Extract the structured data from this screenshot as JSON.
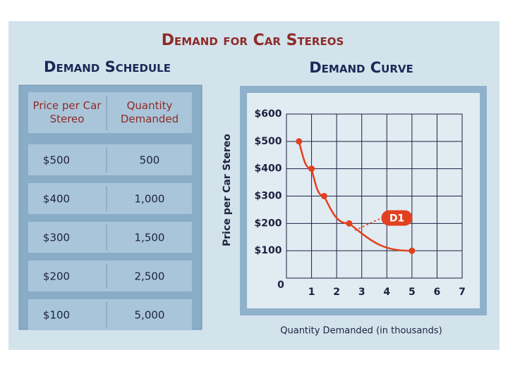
{
  "title": "Demand for Car Stereos",
  "schedule": {
    "title": "Demand Schedule",
    "header": [
      "Price per Car Stereo",
      "Quantity Demanded"
    ],
    "rows": [
      [
        "$500",
        "500"
      ],
      [
        "$400",
        "1,000"
      ],
      [
        "$300",
        "1,500"
      ],
      [
        "$200",
        "2,500"
      ],
      [
        "$100",
        "5,000"
      ]
    ]
  },
  "chart_data": {
    "type": "line",
    "title": "Demand Curve",
    "x_label": "Quantity Demanded (in thousands)",
    "y_label": "Price per Car Stereo",
    "x": [
      0.5,
      1,
      1.5,
      2.5,
      5
    ],
    "series": [
      {
        "name": "D1",
        "color": "#e2401e",
        "values": [
          500,
          400,
          300,
          200,
          100
        ]
      }
    ],
    "xlim": [
      0,
      7
    ],
    "xticks": [
      1,
      2,
      3,
      4,
      5,
      6,
      7
    ],
    "ylim": [
      0,
      600
    ],
    "yticks": [
      0,
      {
        "value": 100,
        "label": "$100"
      },
      {
        "value": 200,
        "label": "$200"
      },
      {
        "value": 300,
        "label": "$300"
      },
      {
        "value": 400,
        "label": "$400"
      },
      {
        "value": 500,
        "label": "$500"
      },
      {
        "value": 600,
        "label": "$600"
      }
    ],
    "grid": true
  }
}
